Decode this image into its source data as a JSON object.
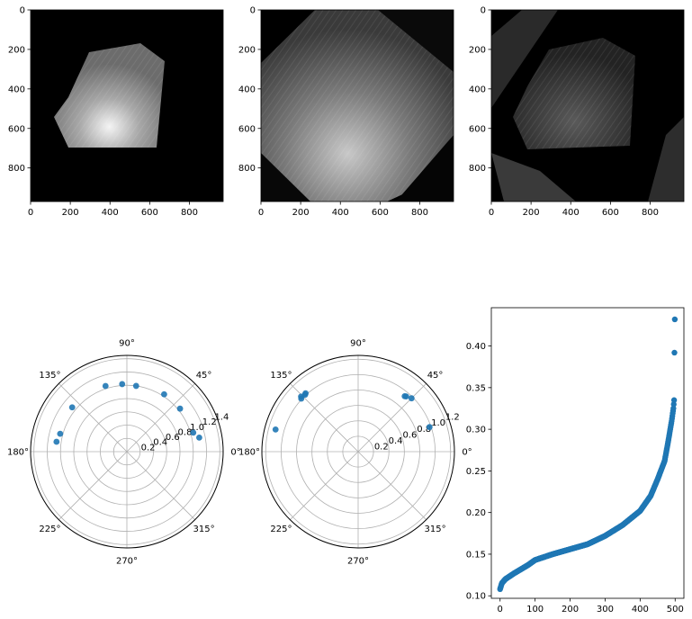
{
  "images": [
    {
      "xticks": [
        0,
        200,
        400,
        600,
        800
      ],
      "yticks": [
        0,
        200,
        400,
        600,
        800
      ],
      "xlim": [
        0,
        970
      ],
      "ylim": [
        970,
        0
      ],
      "shape": "silhouette of a bright rough-hexagonal object on black; brightest region near bottom center"
    },
    {
      "xticks": [
        0,
        200,
        400,
        600,
        800
      ],
      "yticks": [
        0,
        200,
        400,
        600,
        800
      ],
      "xlim": [
        0,
        970
      ],
      "ylim": [
        970,
        0
      ],
      "shape": "rotated square grey texture with dark corner wedges and streaked edges"
    },
    {
      "xticks": [
        0,
        200,
        400,
        600,
        800
      ],
      "yticks": [
        0,
        200,
        400,
        600,
        800
      ],
      "xlim": [
        0,
        970
      ],
      "ylim": [
        970,
        0
      ],
      "shape": "dim difference image of the hexagonal object over rotated-square background"
    }
  ],
  "chart_data": [
    {
      "type": "scatter",
      "projection": "polar",
      "theta_ticks": [
        "0°",
        "45°",
        "90°",
        "135°",
        "180°",
        "225°",
        "270°",
        "315°"
      ],
      "r_ticks": [
        "0.2",
        "0.4",
        "0.6",
        "0.8",
        "1.0",
        "1.2",
        "1.4"
      ],
      "rlim": [
        0,
        1.45
      ],
      "grid": true,
      "points_deg_r": [
        [
          11,
          1.11
        ],
        [
          16,
          1.04
        ],
        [
          39,
          1.03
        ],
        [
          57,
          1.03
        ],
        [
          82,
          1.0
        ],
        [
          94,
          1.02
        ],
        [
          108,
          1.04
        ],
        [
          141,
          1.06
        ],
        [
          165,
          1.04
        ],
        [
          172,
          1.07
        ]
      ],
      "color": "#1f77b4"
    },
    {
      "type": "scatter",
      "projection": "polar",
      "theta_ticks": [
        "0°",
        "45°",
        "90°",
        "135°",
        "180°",
        "225°",
        "270°",
        "315°"
      ],
      "r_ticks": [
        "0.2",
        "0.4",
        "0.6",
        "0.8",
        "1.0",
        "1.2"
      ],
      "rlim": [
        0,
        1.25
      ],
      "grid": true,
      "points_deg_r": [
        [
          19,
          0.98
        ],
        [
          45,
          0.98
        ],
        [
          49,
          0.95
        ],
        [
          50,
          0.94
        ],
        [
          132,
          1.02
        ],
        [
          133,
          1.01
        ],
        [
          136,
          1.03
        ],
        [
          137,
          1.01
        ],
        [
          165,
          1.11
        ]
      ],
      "color": "#1f77b4"
    },
    {
      "type": "scatter",
      "xticks": [
        "0",
        "100",
        "200",
        "300",
        "400",
        "500"
      ],
      "yticks": [
        "0.10",
        "0.15",
        "0.20",
        "0.25",
        "0.30",
        "0.35",
        "0.40"
      ],
      "xlim": [
        -25,
        525
      ],
      "ylim": [
        0.097,
        0.446
      ],
      "grid": false,
      "n_points": 500,
      "curve_keypoints": [
        [
          0,
          0.108
        ],
        [
          5,
          0.115
        ],
        [
          15,
          0.12
        ],
        [
          40,
          0.127
        ],
        [
          80,
          0.137
        ],
        [
          100,
          0.143
        ],
        [
          150,
          0.15
        ],
        [
          200,
          0.156
        ],
        [
          250,
          0.162
        ],
        [
          300,
          0.172
        ],
        [
          350,
          0.185
        ],
        [
          400,
          0.202
        ],
        [
          430,
          0.22
        ],
        [
          450,
          0.24
        ],
        [
          470,
          0.262
        ],
        [
          480,
          0.285
        ],
        [
          490,
          0.31
        ],
        [
          495,
          0.325
        ],
        [
          497,
          0.335
        ],
        [
          498,
          0.392
        ],
        [
          499,
          0.432
        ]
      ],
      "color": "#1f77b4"
    }
  ]
}
